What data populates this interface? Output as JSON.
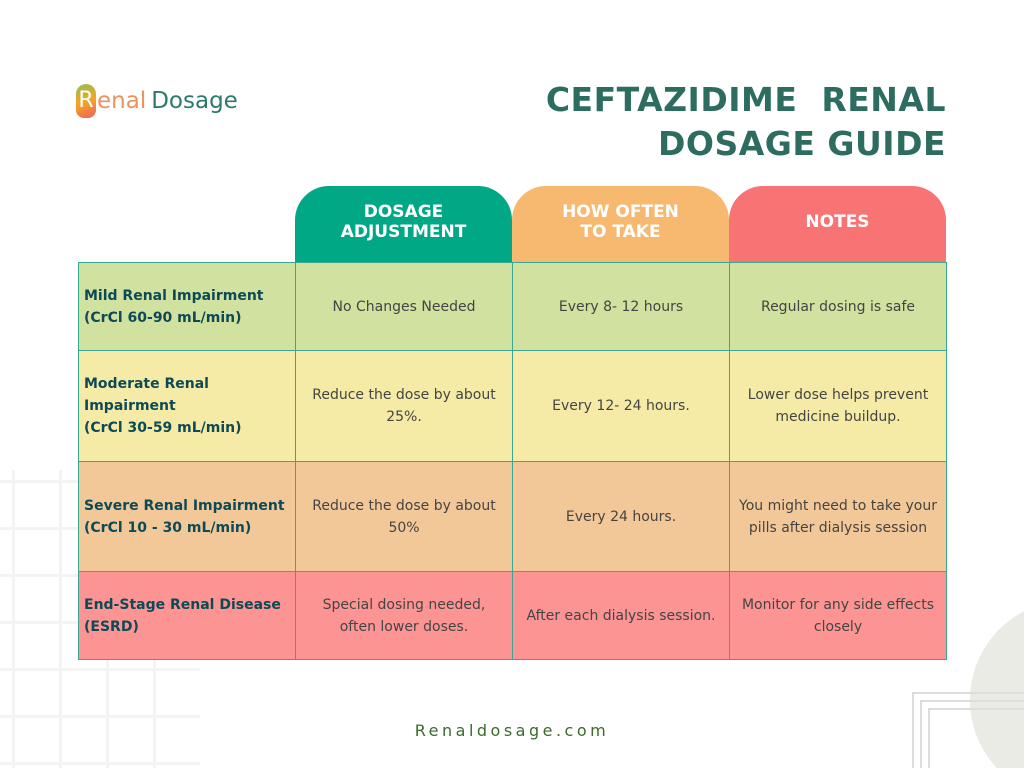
{
  "logo": {
    "text": "Renal Dosage",
    "r": "R",
    "enal": "enal",
    "dosage": "Dosage"
  },
  "title": {
    "line1": "CEFTAZIDIME  RENAL",
    "line2": "DOSAGE GUIDE"
  },
  "headers": [
    {
      "label": "DOSAGE ADJUSTMENT",
      "color": "#00a886"
    },
    {
      "label": "HOW OFTEN TO TAKE",
      "color": "#f7b86f"
    },
    {
      "label": "NOTES",
      "color": "#f87474"
    }
  ],
  "rows": [
    {
      "stage": "Mild Renal Impairment",
      "crcl": "(CrCl 60-90 mL/min)",
      "dosage": "No Changes Needed",
      "frequency": "Every 8- 12 hours",
      "notes": "Regular dosing is safe",
      "color": "#d0e1a0"
    },
    {
      "stage": "Moderate Renal Impairment",
      "crcl": "(CrCl 30-59 mL/min)",
      "dosage": "Reduce the dose by about 25%.",
      "frequency": "Every 12- 24 hours.",
      "notes": "Lower dose helps prevent medicine buildup.",
      "color": "#f5eba6"
    },
    {
      "stage": "Severe Renal Impairment",
      "crcl": "(CrCl 10 - 30 mL/min)",
      "dosage": "Reduce the dose by about 50%",
      "frequency": "Every 24 hours.",
      "notes": "You might need to take your pills after dialysis session",
      "color": "#f3c898"
    },
    {
      "stage": "End-Stage Renal Disease",
      "crcl": "(ESRD)",
      "dosage": "Special dosing needed, often lower doses.",
      "frequency": "After each dialysis session.",
      "notes": "Monitor for any side effects closely",
      "color": "#fd9494"
    }
  ],
  "footer": "Renaldosage.com"
}
